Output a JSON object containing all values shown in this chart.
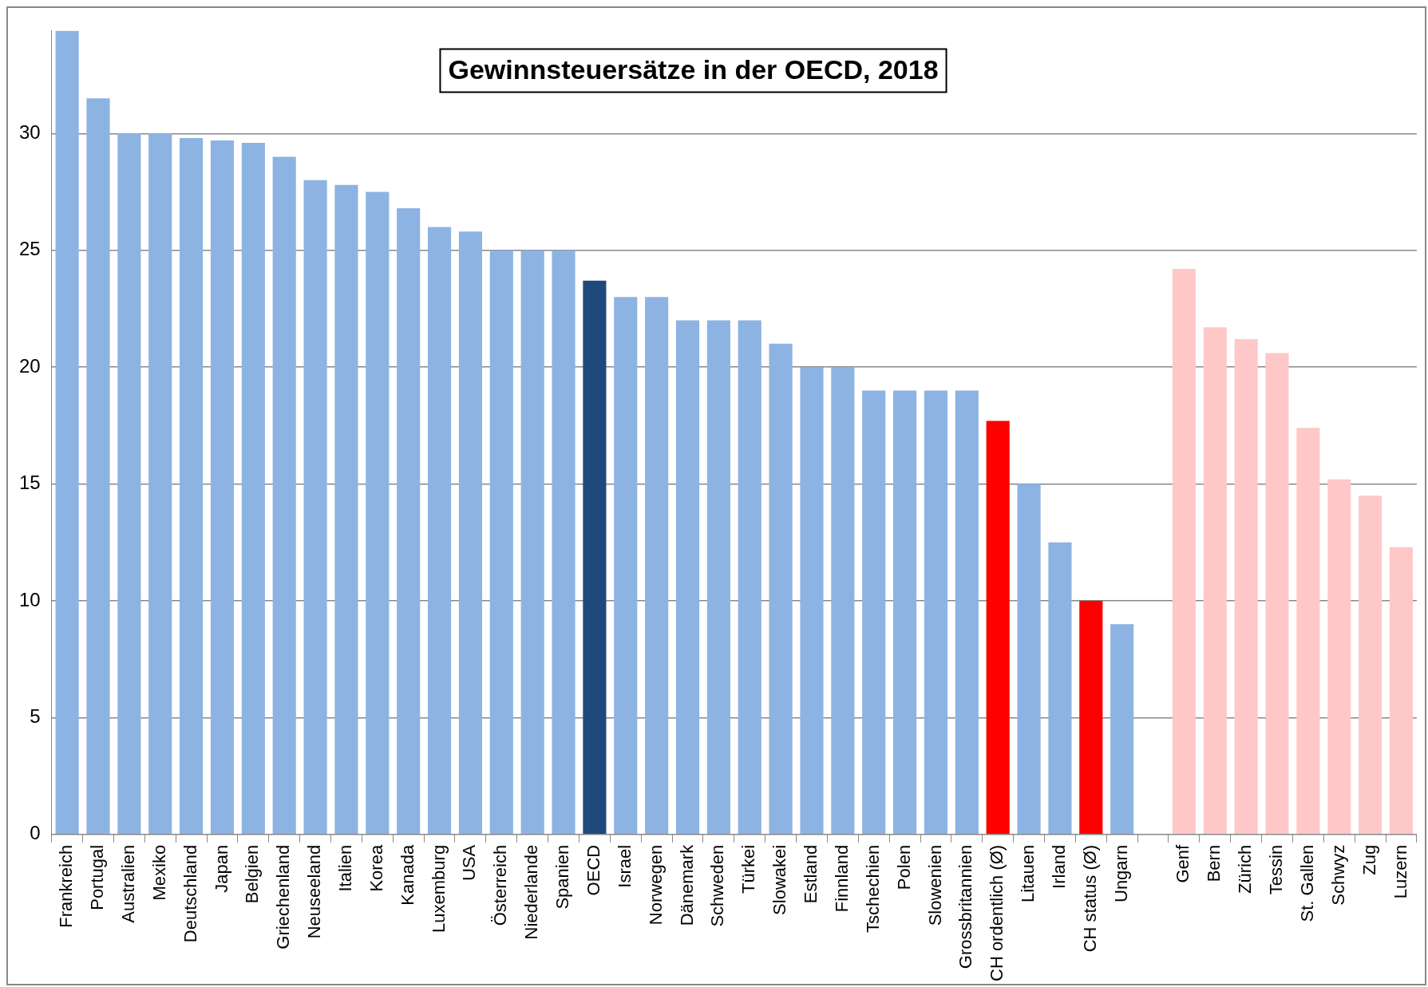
{
  "chart_data": {
    "type": "bar",
    "title": "Gewinnsteuersätze in der OECD, 2018",
    "categories": [
      "Frankreich",
      "Portugal",
      "Australien",
      "Mexiko",
      "Deutschland",
      "Japan",
      "Belgien",
      "Griechenland",
      "Neuseeland",
      "Italien",
      "Korea",
      "Kanada",
      "Luxemburg",
      "USA",
      "Österreich",
      "Niederlande",
      "Spanien",
      "OECD",
      "Israel",
      "Norwegen",
      "Dänemark",
      "Schweden",
      "Türkei",
      "Slowakei",
      "Estland",
      "Finnland",
      "Tschechien",
      "Polen",
      "Slowenien",
      "Grossbritannien",
      "CH ordentlich (Ø)",
      "Litauen",
      "Irland",
      "CH status (Ø)",
      "Ungarn",
      null,
      "Genf",
      "Bern",
      "Zürich",
      "Tessin",
      "St. Gallen",
      "Schwyz",
      "Zug",
      "Luzern"
    ],
    "values": [
      34.4,
      31.5,
      30,
      30,
      29.8,
      29.7,
      29.6,
      29,
      28,
      27.8,
      27.5,
      26.8,
      26,
      25.8,
      25,
      25,
      25,
      23.7,
      23,
      23,
      22,
      22,
      22,
      21,
      20,
      20,
      19,
      19,
      19,
      19,
      17.7,
      15,
      12.5,
      10,
      9,
      null,
      24.2,
      21.7,
      21.2,
      20.6,
      17.4,
      15.2,
      14.5,
      12.3
    ],
    "colors": [
      "#8db3e2",
      "#8db3e2",
      "#8db3e2",
      "#8db3e2",
      "#8db3e2",
      "#8db3e2",
      "#8db3e2",
      "#8db3e2",
      "#8db3e2",
      "#8db3e2",
      "#8db3e2",
      "#8db3e2",
      "#8db3e2",
      "#8db3e2",
      "#8db3e2",
      "#8db3e2",
      "#8db3e2",
      "#1f497d",
      "#8db3e2",
      "#8db3e2",
      "#8db3e2",
      "#8db3e2",
      "#8db3e2",
      "#8db3e2",
      "#8db3e2",
      "#8db3e2",
      "#8db3e2",
      "#8db3e2",
      "#8db3e2",
      "#8db3e2",
      "#ff0000",
      "#8db3e2",
      "#8db3e2",
      "#ff0000",
      "#8db3e2",
      "#8db3e2",
      "#ffc8c8",
      "#ffc8c8",
      "#ffc8c8",
      "#ffc8c8",
      "#ffc8c8",
      "#ffc8c8",
      "#ffc8c8",
      "#ffc8c8"
    ],
    "ylim": [
      0,
      34.4
    ],
    "yticks": [
      0,
      5,
      10,
      15,
      20,
      25,
      30
    ],
    "grid": "y",
    "legend": false
  }
}
